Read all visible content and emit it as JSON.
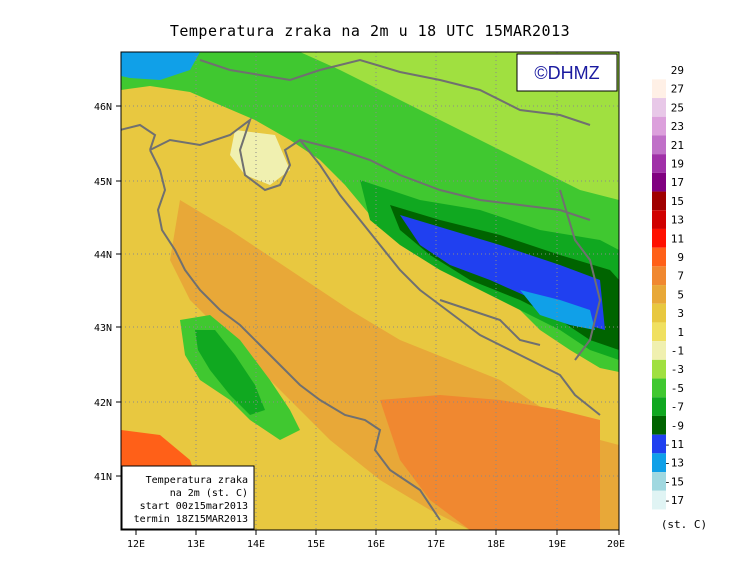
{
  "title": "Temperatura zraka na 2m u 18 UTC 15MAR2013",
  "logo": "©DHMZ",
  "lon_labels": [
    "12E",
    "13E",
    "14E",
    "15E",
    "16E",
    "17E",
    "18E",
    "19E",
    "20E"
  ],
  "lat_labels": [
    "46N",
    "45N",
    "44N",
    "43N",
    "42N",
    "41N"
  ],
  "infobox": [
    "Temperatura zraka",
    "na 2m (st. C)",
    "start 00z15mar2013",
    "termin 18Z15MAR2013"
  ],
  "colorbar": {
    "labels": [
      "29",
      "27",
      "25",
      "23",
      "21",
      "19",
      "17",
      "15",
      "13",
      "11",
      "9",
      "7",
      "5",
      "3",
      "1",
      "-1",
      "-3",
      "-5",
      "-7",
      "-9",
      "-11",
      "-13",
      "-15",
      "-17"
    ],
    "unit": "(st. C)",
    "colors": [
      "#fff0e6",
      "#e8c8e8",
      "#dca0dc",
      "#c070c8",
      "#a030a8",
      "#800080",
      "#a00000",
      "#d00000",
      "#ff1000",
      "#ff6018",
      "#f08830",
      "#e8a838",
      "#e8c840",
      "#f0e060",
      "#f0f0b0",
      "#a0e040",
      "#40c830",
      "#10a820",
      "#006400",
      "#2040f0",
      "#10a0e8",
      "#a0d8e0",
      "#e0f4f4"
    ]
  }
}
